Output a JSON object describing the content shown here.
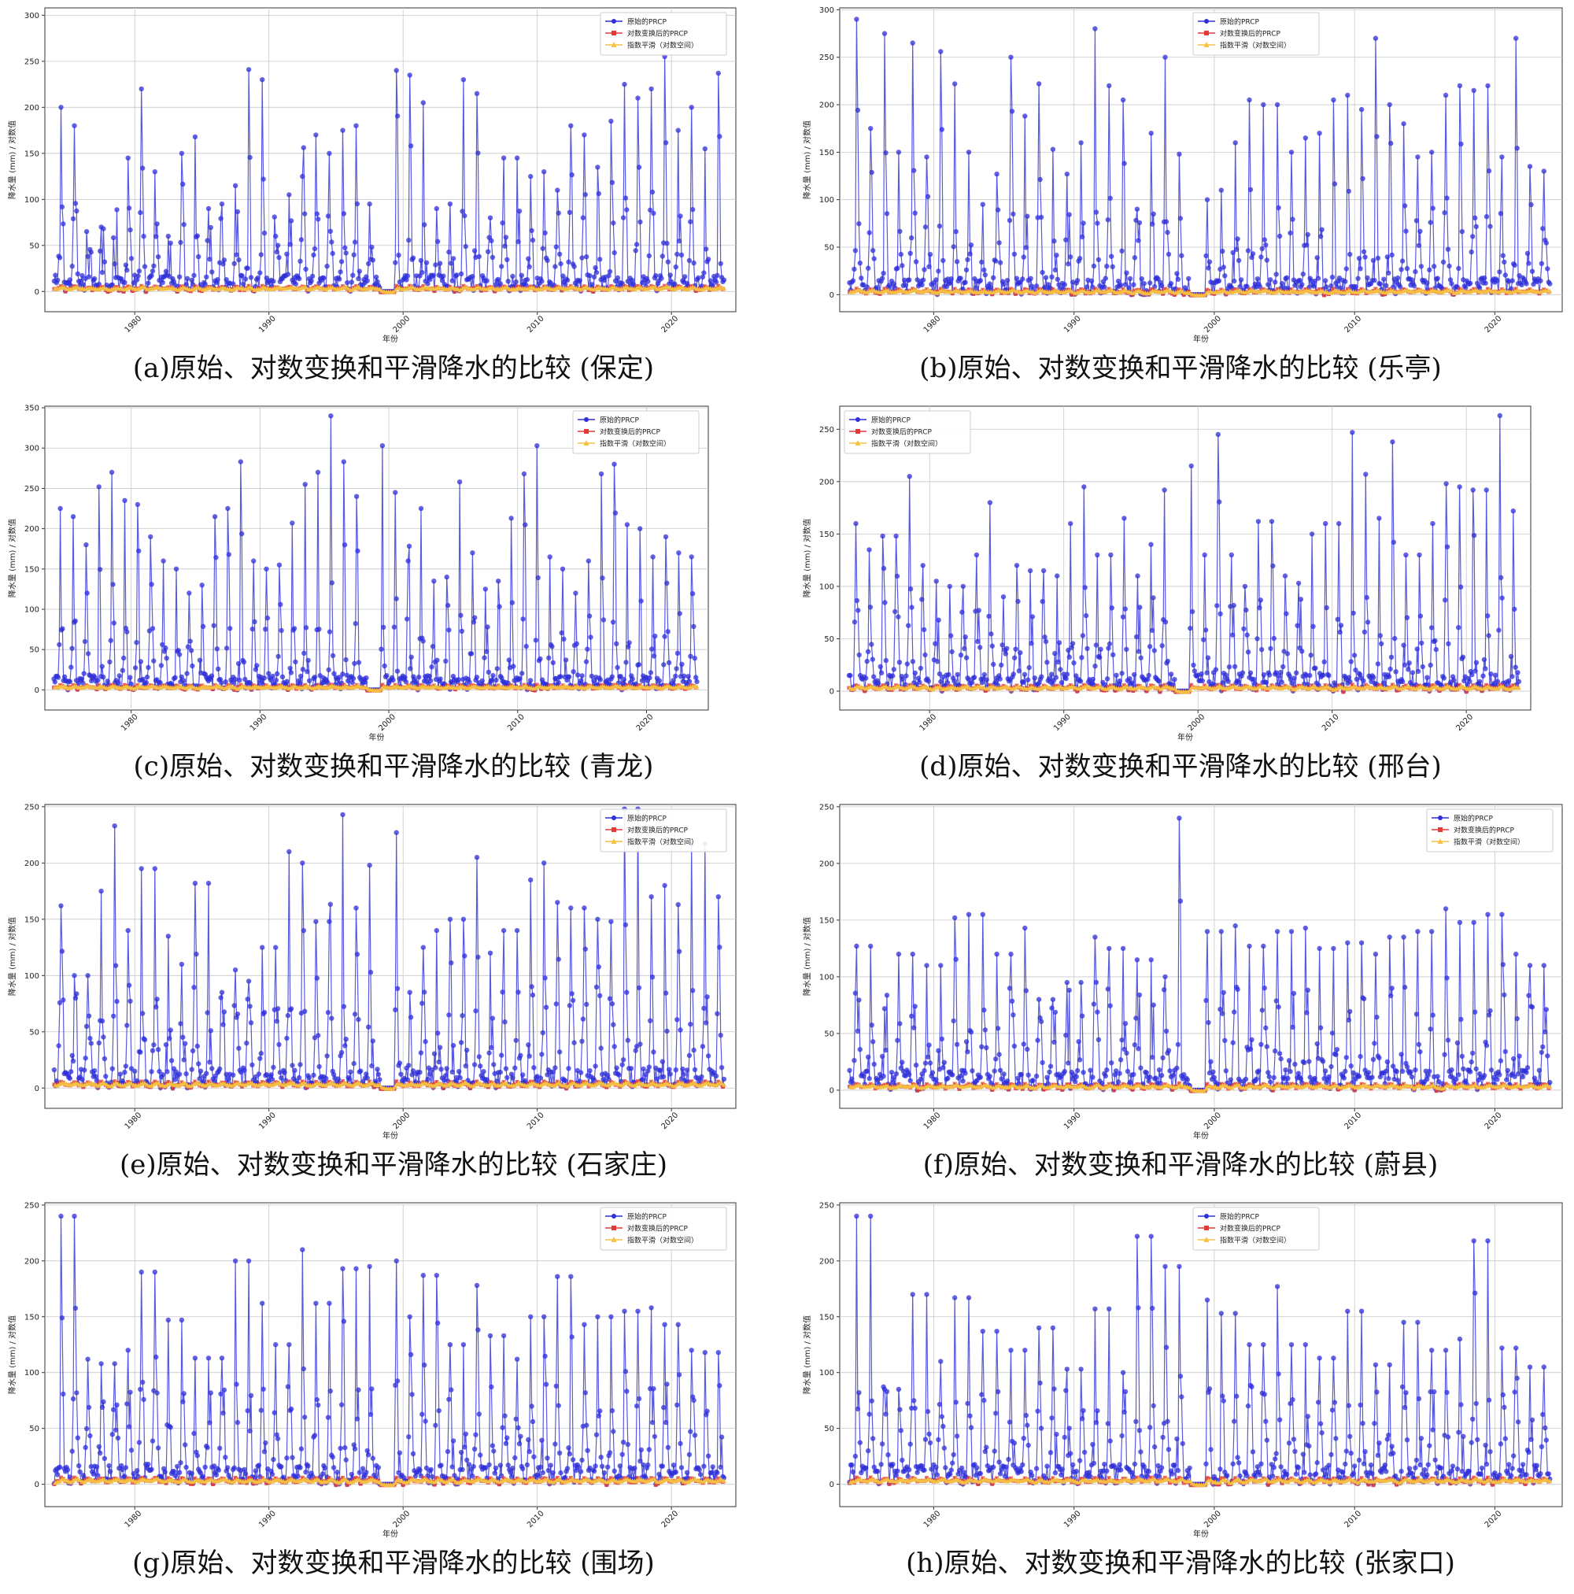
{
  "chart_data": [
    {
      "id": "a",
      "type": "line",
      "caption": "(a)原始、对数变换和平滑降水的比较 (保定)",
      "xlabel": "年份",
      "ylabel": "降水量 (mm) / 对数值",
      "xticks": [
        "1980",
        "1990",
        "2000",
        "2010",
        "2020"
      ],
      "xlim": [
        1973.3,
        2024.8
      ],
      "yticks": [
        "0",
        "50",
        "100",
        "150",
        "200",
        "250",
        "300"
      ],
      "ylim": [
        -22,
        308
      ],
      "grid": true,
      "legend_position": "top-right",
      "peaks": [
        200,
        180,
        38,
        70,
        30,
        145,
        165,
        220,
        130,
        60,
        150,
        168,
        90,
        95,
        115,
        241,
        230,
        60,
        105,
        125,
        276,
        170,
        150,
        175,
        180,
        95,
        265,
        240,
        235,
        205,
        90,
        95,
        230,
        115,
        215,
        80,
        145,
        145,
        125,
        130,
        110,
        180,
        170,
        135,
        185,
        225,
        210,
        205,
        220,
        255,
        175,
        200,
        155,
        237
      ],
      "series": [
        {
          "name": "原始的PRCP",
          "color": "#2f2fd8",
          "marker": "circle"
        },
        {
          "name": "对数变换后的PRCP",
          "color": "#e03a3a",
          "marker": "square"
        },
        {
          "name": "指数平滑（对数空间）",
          "color": "#f5c242",
          "marker": "triangle"
        }
      ]
    },
    {
      "id": "b",
      "type": "line",
      "caption": "(b)原始、对数变换和平滑降水的比较 (乐亭)",
      "xlabel": "年份",
      "ylabel": "降水量 (mm) / 对数值",
      "xticks": [
        "1980",
        "1990",
        "2000",
        "2010",
        "2020"
      ],
      "xlim": [
        1973.3,
        2024.8
      ],
      "yticks": [
        "0",
        "50",
        "100",
        "150",
        "200",
        "250",
        "300"
      ],
      "ylim": [
        -18,
        302
      ],
      "grid": true,
      "legend_position": "top-center",
      "peaks": [
        290,
        175,
        275,
        150,
        265,
        145,
        256,
        222,
        150,
        95,
        127,
        250,
        188,
        222,
        153,
        127,
        160,
        280,
        220,
        205,
        90,
        170,
        250,
        148,
        175,
        100,
        110,
        160,
        205,
        200,
        200,
        150,
        165,
        170,
        205,
        210,
        195,
        270,
        200,
        180,
        145,
        150,
        210,
        220,
        215,
        220,
        145,
        270,
        135,
        130
      ],
      "series": [
        {
          "name": "原始的PRCP",
          "color": "#2f2fd8",
          "marker": "circle"
        },
        {
          "name": "对数变换后的PRCP",
          "color": "#e03a3a",
          "marker": "square"
        },
        {
          "name": "指数平滑（对数空间）",
          "color": "#f5c242",
          "marker": "triangle"
        }
      ]
    },
    {
      "id": "c",
      "type": "line",
      "caption": "(c)原始、对数变换和平滑降水的比较 (青龙)",
      "xlabel": "年份",
      "ylabel": "降水量 (mm) / 对数值",
      "xticks": [
        "1980",
        "1990",
        "2000",
        "2010",
        "2020"
      ],
      "xlim": [
        1973.3,
        2024.8
      ],
      "yticks": [
        "0",
        "50",
        "100",
        "150",
        "200",
        "250",
        "300",
        "350"
      ],
      "ylim": [
        -25,
        352
      ],
      "grid": true,
      "legend_position": "top-right",
      "peaks": [
        225,
        215,
        180,
        252,
        270,
        235,
        230,
        190,
        160,
        150,
        120,
        130,
        215,
        225,
        283,
        160,
        150,
        155,
        207,
        255,
        270,
        340,
        283,
        240,
        303,
        245,
        160,
        225,
        135,
        140,
        258,
        170,
        125,
        135,
        213,
        268,
        303,
        165,
        150,
        120,
        160,
        268,
        280,
        205,
        200,
        165,
        190,
        170,
        165
      ],
      "series": [
        {
          "name": "原始的PRCP",
          "color": "#2f2fd8",
          "marker": "circle"
        },
        {
          "name": "对数变换后的PRCP",
          "color": "#e03a3a",
          "marker": "square"
        },
        {
          "name": "指数平滑（对数空间）",
          "color": "#f5c242",
          "marker": "triangle"
        }
      ]
    },
    {
      "id": "d",
      "type": "line",
      "caption": "(d)原始、对数变换和平滑降水的比较 (邢台)",
      "xlabel": "年份",
      "ylabel": "降水量 (mm) / 对数值",
      "xticks": [
        "1980",
        "1990",
        "2000",
        "2010",
        "2020"
      ],
      "xlim": [
        1973.3,
        2024.8
      ],
      "yticks": [
        "0",
        "50",
        "100",
        "150",
        "200",
        "250"
      ],
      "ylim": [
        -18,
        272
      ],
      "grid": true,
      "legend_position": "top-left",
      "peaks": [
        160,
        135,
        148,
        205,
        120,
        105,
        100,
        130,
        180,
        90,
        120,
        115,
        110,
        160,
        195,
        130,
        165,
        110,
        140,
        192,
        215,
        130,
        245,
        130,
        100,
        162,
        110,
        103,
        150,
        160,
        247,
        207,
        165,
        238,
        130,
        160,
        198,
        195,
        192,
        263,
        172
      ],
      "series": [
        {
          "name": "原始的PRCP",
          "color": "#2f2fd8",
          "marker": "circle"
        },
        {
          "name": "对数变换后的PRCP",
          "color": "#e03a3a",
          "marker": "square"
        },
        {
          "name": "指数平滑（对数空间）",
          "color": "#f5c242",
          "marker": "triangle"
        }
      ]
    },
    {
      "id": "e",
      "type": "line",
      "caption": "(e)原始、对数变换和平滑降水的比较 (石家庄)",
      "xlabel": "年份",
      "ylabel": "降水量 (mm) / 对数值",
      "xticks": [
        "1980",
        "1990",
        "2000",
        "2010",
        "2020"
      ],
      "xlim": [
        1973.3,
        2024.8
      ],
      "yticks": [
        "0",
        "50",
        "100",
        "150",
        "200",
        "250"
      ],
      "ylim": [
        -18,
        252
      ],
      "grid": true,
      "legend_position": "top-right",
      "peaks": [
        162,
        100,
        175,
        233,
        140,
        195,
        135,
        110,
        182,
        85,
        105,
        95,
        125,
        210,
        200,
        148,
        243,
        160,
        198,
        227,
        85,
        125,
        140,
        150,
        205,
        120,
        140,
        185,
        200,
        165,
        160,
        150,
        148,
        248,
        170,
        180,
        163,
        217,
        170
      ],
      "series": [
        {
          "name": "原始的PRCP",
          "color": "#2f2fd8",
          "marker": "circle"
        },
        {
          "name": "对数变换后的PRCP",
          "color": "#e03a3a",
          "marker": "square"
        },
        {
          "name": "指数平滑（对数空间）",
          "color": "#f5c242",
          "marker": "triangle"
        }
      ]
    },
    {
      "id": "f",
      "type": "line",
      "caption": "(f)原始、对数变换和平滑降水的比较 (蔚县)",
      "xlabel": "年份",
      "ylabel": "降水量 (mm) / 对数值",
      "xticks": [
        "1980",
        "1990",
        "2000",
        "2010",
        "2020"
      ],
      "xlim": [
        1973.3,
        2024.8
      ],
      "yticks": [
        "0",
        "50",
        "100",
        "150",
        "200",
        "250"
      ],
      "ylim": [
        -16,
        252
      ],
      "grid": true,
      "legend_position": "top-right",
      "peaks": [
        127,
        72,
        120,
        110,
        152,
        155,
        120,
        143,
        80,
        95,
        135,
        125,
        115,
        100,
        240,
        140,
        145,
        127,
        140,
        143,
        125,
        130,
        120,
        135,
        140,
        160,
        148,
        155,
        120,
        110
      ],
      "series": [
        {
          "name": "原始的PRCP",
          "color": "#2f2fd8",
          "marker": "circle"
        },
        {
          "name": "对数变换后的PRCP",
          "color": "#e03a3a",
          "marker": "square"
        },
        {
          "name": "指数平滑（对数空间）",
          "color": "#f5c242",
          "marker": "triangle"
        }
      ]
    },
    {
      "id": "g",
      "type": "line",
      "caption": "(g)原始、对数变换和平滑降水的比较 (围场)",
      "xlabel": "年份",
      "ylabel": "降水量 (mm) / 对数值",
      "xticks": [
        "1980",
        "1990",
        "2000",
        "2010",
        "2020"
      ],
      "xlim": [
        1973.3,
        2024.8
      ],
      "yticks": [
        "0",
        "50",
        "100",
        "150",
        "200",
        "250"
      ],
      "ylim": [
        -20,
        252
      ],
      "grid": true,
      "legend_position": "top-right",
      "peaks": [
        240,
        112,
        108,
        120,
        190,
        147,
        113,
        113,
        200,
        162,
        125,
        210,
        162,
        193,
        195,
        200,
        150,
        187,
        125,
        178,
        133,
        112,
        150,
        186,
        143,
        150,
        155,
        158,
        143,
        120,
        118
      ],
      "series": [
        {
          "name": "原始的PRCP",
          "color": "#2f2fd8",
          "marker": "circle"
        },
        {
          "name": "对数变换后的PRCP",
          "color": "#e03a3a",
          "marker": "square"
        },
        {
          "name": "指数平滑（对数空间）",
          "color": "#f5c242",
          "marker": "triangle"
        }
      ]
    },
    {
      "id": "h",
      "type": "line",
      "caption": "(h)原始、对数变换和平滑降水的比较 (张家口)",
      "xlabel": "年份",
      "ylabel": "降水量 (mm) / 对数值",
      "xticks": [
        "1980",
        "1990",
        "2000",
        "2010",
        "2020"
      ],
      "xlim": [
        1973.3,
        2024.8
      ],
      "yticks": [
        "0",
        "50",
        "100",
        "150",
        "200",
        "250"
      ],
      "ylim": [
        -20,
        252
      ],
      "grid": true,
      "legend_position": "top-center",
      "peaks": [
        240,
        85,
        170,
        110,
        167,
        137,
        120,
        140,
        103,
        157,
        100,
        222,
        195,
        165,
        153,
        125,
        177,
        125,
        113,
        155,
        107,
        145,
        120,
        130,
        218,
        122,
        105
      ],
      "series": [
        {
          "name": "原始的PRCP",
          "color": "#2f2fd8",
          "marker": "circle"
        },
        {
          "name": "对数变换后的PRCP",
          "color": "#e03a3a",
          "marker": "square"
        },
        {
          "name": "指数平滑（对数空间）",
          "color": "#f5c242",
          "marker": "triangle"
        }
      ]
    }
  ]
}
